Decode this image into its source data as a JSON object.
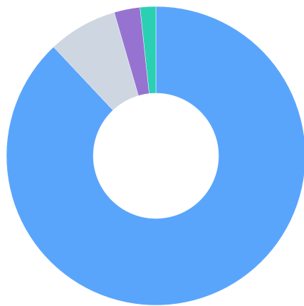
{
  "chart_data": {
    "type": "donut",
    "categories": [
      null,
      null,
      null,
      null
    ],
    "values": [
      88,
      7.5,
      2.8,
      1.7
    ],
    "colors": [
      "#5aa5fc",
      "#cdd6e1",
      "#9673d1",
      "#2bd0b3"
    ]
  }
}
